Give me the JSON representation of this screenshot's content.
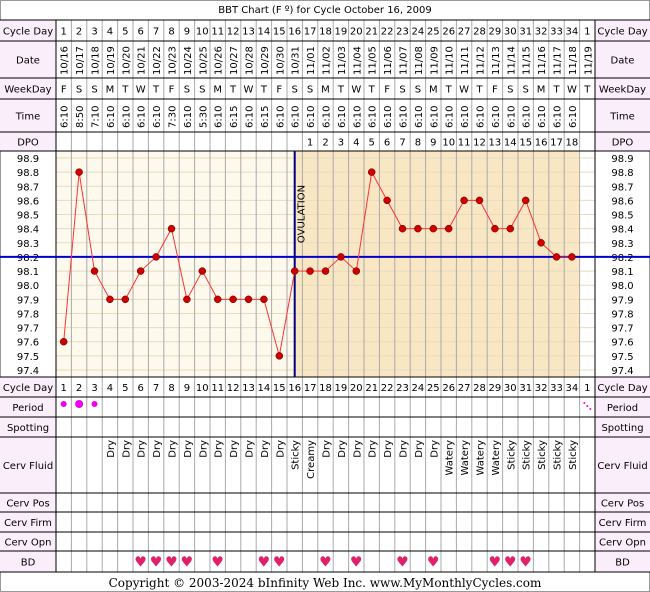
{
  "title": "BBT Chart (F º) for Cycle October 16, 2009",
  "row_labels": {
    "cycle_day": "Cycle Day",
    "date": "Date",
    "weekday": "WeekDay",
    "time": "Time",
    "dpo": "DPO",
    "period": "Period",
    "spotting": "Spotting",
    "cerv_fluid": "Cerv Fluid",
    "cerv_pos": "Cerv Pos",
    "cerv_firm": "Cerv Firm",
    "cerv_opn": "Cerv Opn",
    "bd": "BD"
  },
  "ovulation_label": "OVULATION",
  "copyright": "Copyright © 2003-2024 bInfinity Web Inc.     www.MyMonthlyCycles.com",
  "colors": {
    "temp_line": "#ff3333",
    "temp_point": "#cc0000",
    "coverline": "#0000cc",
    "ovulation_line": "#000080",
    "pre_ovulation_bg": "#fdf9ec",
    "post_ovulation_bg": "#f9e7c4",
    "label_bg": "#fbeefb",
    "period_dot": "#ee00ee",
    "heart": "#e0206a"
  },
  "chart_data": {
    "type": "line",
    "title": "BBT Chart (F º) for Cycle October 16, 2009",
    "ylim": [
      97.4,
      98.9
    ],
    "y_ticks": [
      "98.9",
      "98.8",
      "98.7",
      "98.6",
      "98.5",
      "98.4",
      "98.3",
      "98.2",
      "98.1",
      "98.0",
      "97.9",
      "97.8",
      "97.7",
      "97.6",
      "97.5",
      "97.4"
    ],
    "coverline": 98.2,
    "ovulation_day": 16,
    "cycle_days": [
      "1",
      "2",
      "3",
      "4",
      "5",
      "6",
      "7",
      "8",
      "9",
      "10",
      "11",
      "12",
      "13",
      "14",
      "15",
      "16",
      "17",
      "18",
      "19",
      "20",
      "21",
      "22",
      "23",
      "24",
      "25",
      "26",
      "27",
      "28",
      "29",
      "30",
      "31",
      "32",
      "33",
      "34",
      "1"
    ],
    "dates": [
      "10/16",
      "10/17",
      "10/18",
      "10/19",
      "10/20",
      "10/21",
      "10/22",
      "10/23",
      "10/24",
      "10/25",
      "10/26",
      "10/27",
      "10/28",
      "10/29",
      "10/30",
      "10/31",
      "11/01",
      "11/02",
      "11/03",
      "11/04",
      "11/05",
      "11/06",
      "11/07",
      "11/08",
      "11/09",
      "11/10",
      "11/11",
      "11/12",
      "11/13",
      "11/14",
      "11/15",
      "11/16",
      "11/17",
      "11/18",
      "11/19"
    ],
    "weekdays": [
      "F",
      "S",
      "S",
      "M",
      "T",
      "W",
      "T",
      "F",
      "S",
      "S",
      "M",
      "T",
      "W",
      "T",
      "F",
      "S",
      "S",
      "M",
      "T",
      "W",
      "T",
      "F",
      "S",
      "S",
      "M",
      "T",
      "W",
      "T",
      "F",
      "S",
      "S",
      "M",
      "T",
      "W",
      "T"
    ],
    "times": [
      "6:10",
      "8:50",
      "7:10",
      "6:10",
      "6:10",
      "6:10",
      "6:10",
      "7:30",
      "6:10",
      "5:30",
      "6:10",
      "6:15",
      "6:10",
      "6:15",
      "6:10",
      "6:10",
      "6:10",
      "6:10",
      "6:10",
      "6:10",
      "6:10",
      "6:10",
      "6:10",
      "6:10",
      "6:10",
      "6:10",
      "6:10",
      "6:10",
      "6:10",
      "6:10",
      "6:10",
      "6:10",
      "6:10",
      "6:10",
      ""
    ],
    "dpo": [
      "",
      "",
      "",
      "",
      "",
      "",
      "",
      "",
      "",
      "",
      "",
      "",
      "",
      "",
      "",
      "",
      "1",
      "2",
      "3",
      "4",
      "5",
      "6",
      "7",
      "8",
      "9",
      "10",
      "11",
      "12",
      "13",
      "14",
      "15",
      "16",
      "17",
      "18",
      ""
    ],
    "temps": [
      97.6,
      98.8,
      98.1,
      97.9,
      97.9,
      98.1,
      98.2,
      98.4,
      97.9,
      98.1,
      97.9,
      97.9,
      97.9,
      97.9,
      97.5,
      98.1,
      98.1,
      98.1,
      98.2,
      98.1,
      98.8,
      98.6,
      98.4,
      98.4,
      98.4,
      98.4,
      98.6,
      98.6,
      98.4,
      98.4,
      98.6,
      98.3,
      98.2,
      98.2,
      null
    ],
    "period": [
      "medium",
      "heavy",
      "medium",
      "",
      "",
      "",
      "",
      "",
      "",
      "",
      "",
      "",
      "",
      "",
      "",
      "",
      "",
      "",
      "",
      "",
      "",
      "",
      "",
      "",
      "",
      "",
      "",
      "",
      "",
      "",
      "",
      "",
      "",
      "",
      "spotting"
    ],
    "cerv_fluid": [
      "",
      "",
      "",
      "Dry",
      "Dry",
      "Dry",
      "Dry",
      "Dry",
      "Dry",
      "Dry",
      "Dry",
      "Dry",
      "Dry",
      "Dry",
      "Dry",
      "Sticky",
      "Creamy",
      "Dry",
      "Dry",
      "Dry",
      "Dry",
      "Dry",
      "Dry",
      "Dry",
      "Dry",
      "Watery",
      "Watery",
      "Watery",
      "Watery",
      "Sticky",
      "Sticky",
      "Sticky",
      "Sticky",
      "Sticky",
      ""
    ],
    "bd": [
      false,
      false,
      false,
      false,
      false,
      true,
      true,
      true,
      true,
      false,
      true,
      false,
      false,
      true,
      true,
      false,
      false,
      true,
      false,
      true,
      false,
      false,
      true,
      false,
      true,
      false,
      false,
      false,
      true,
      true,
      true,
      false,
      false,
      false,
      false
    ]
  }
}
